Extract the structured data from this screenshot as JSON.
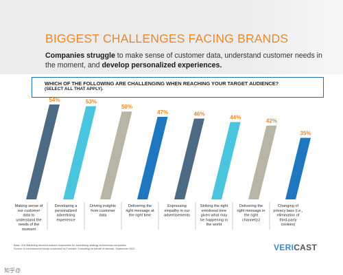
{
  "header": {
    "title": "BIGGEST CHALLENGES FACING BRANDS",
    "subtitle_bold_1": "Companies struggle",
    "subtitle_text_1": " to make sense of customer data, understand customer needs in the moment, and ",
    "subtitle_bold_2": "develop personalized experiences."
  },
  "question": {
    "text": "WHICH OF THE FOLLOWING ARE CHALLENGING WHEN REACHING YOUR TARGET AUDIENCE?",
    "sub": "(SELECT ALL THAT APPLY)."
  },
  "chart_data": {
    "type": "bar",
    "categories": [
      "Making sense of our customer data to understand the needs of the moment",
      "Developing a personalized advertising experience",
      "Driving insights from customer data",
      "Delivering the right message at the right time",
      "Expressing empathy in our advertisements",
      "Striking the right emotional tone given what may be happening in the world",
      "Delivering the right message in the right channel(s)",
      "Changing of privacy laws (i.e., elimination of third-party cookies)"
    ],
    "category_lines": [
      [
        "Making sense of",
        "our customer",
        "data to",
        "understand the",
        "needs of the",
        "moment"
      ],
      [
        "Developing a",
        "personalized",
        "advertising",
        "experience"
      ],
      [
        "Driving insights",
        "from customer",
        "data"
      ],
      [
        "Delivering the",
        "right message at",
        "the right time"
      ],
      [
        "Expressing",
        "empathy in our",
        "advertisements"
      ],
      [
        "Striking the right",
        "emotional tone",
        "given what may",
        "be happening in",
        "the world"
      ],
      [
        "Delivering the",
        "right message in",
        "the right",
        "channel(s)"
      ],
      [
        "Changing of",
        "privacy laws (i.e.,",
        "elimination of",
        "third-party",
        "cookies)"
      ]
    ],
    "values": [
      54,
      53,
      50,
      47,
      46,
      44,
      42,
      35
    ],
    "value_labels": [
      "54%",
      "53%",
      "50%",
      "47%",
      "46%",
      "44%",
      "42%",
      "35%"
    ],
    "colors": [
      "#4d6a84",
      "#49c6dd",
      "#b8b5a7",
      "#1f78bf",
      "#4d6a84",
      "#49c6dd",
      "#b8b5a7",
      "#1f78bf"
    ],
    "label_color": "#e8892a",
    "ylim": [
      0,
      54
    ]
  },
  "footnote": {
    "line1": "Base: 316 Marketing decision-makers responsible for advertising strategy at Americas companies",
    "line2": "Source: A commissioned study conducted by Forrester Consulting on behalf of Vericast, September 2022"
  },
  "logo": {
    "accent": "VERI",
    "rest": "CAST"
  },
  "watermark": "知乎@"
}
